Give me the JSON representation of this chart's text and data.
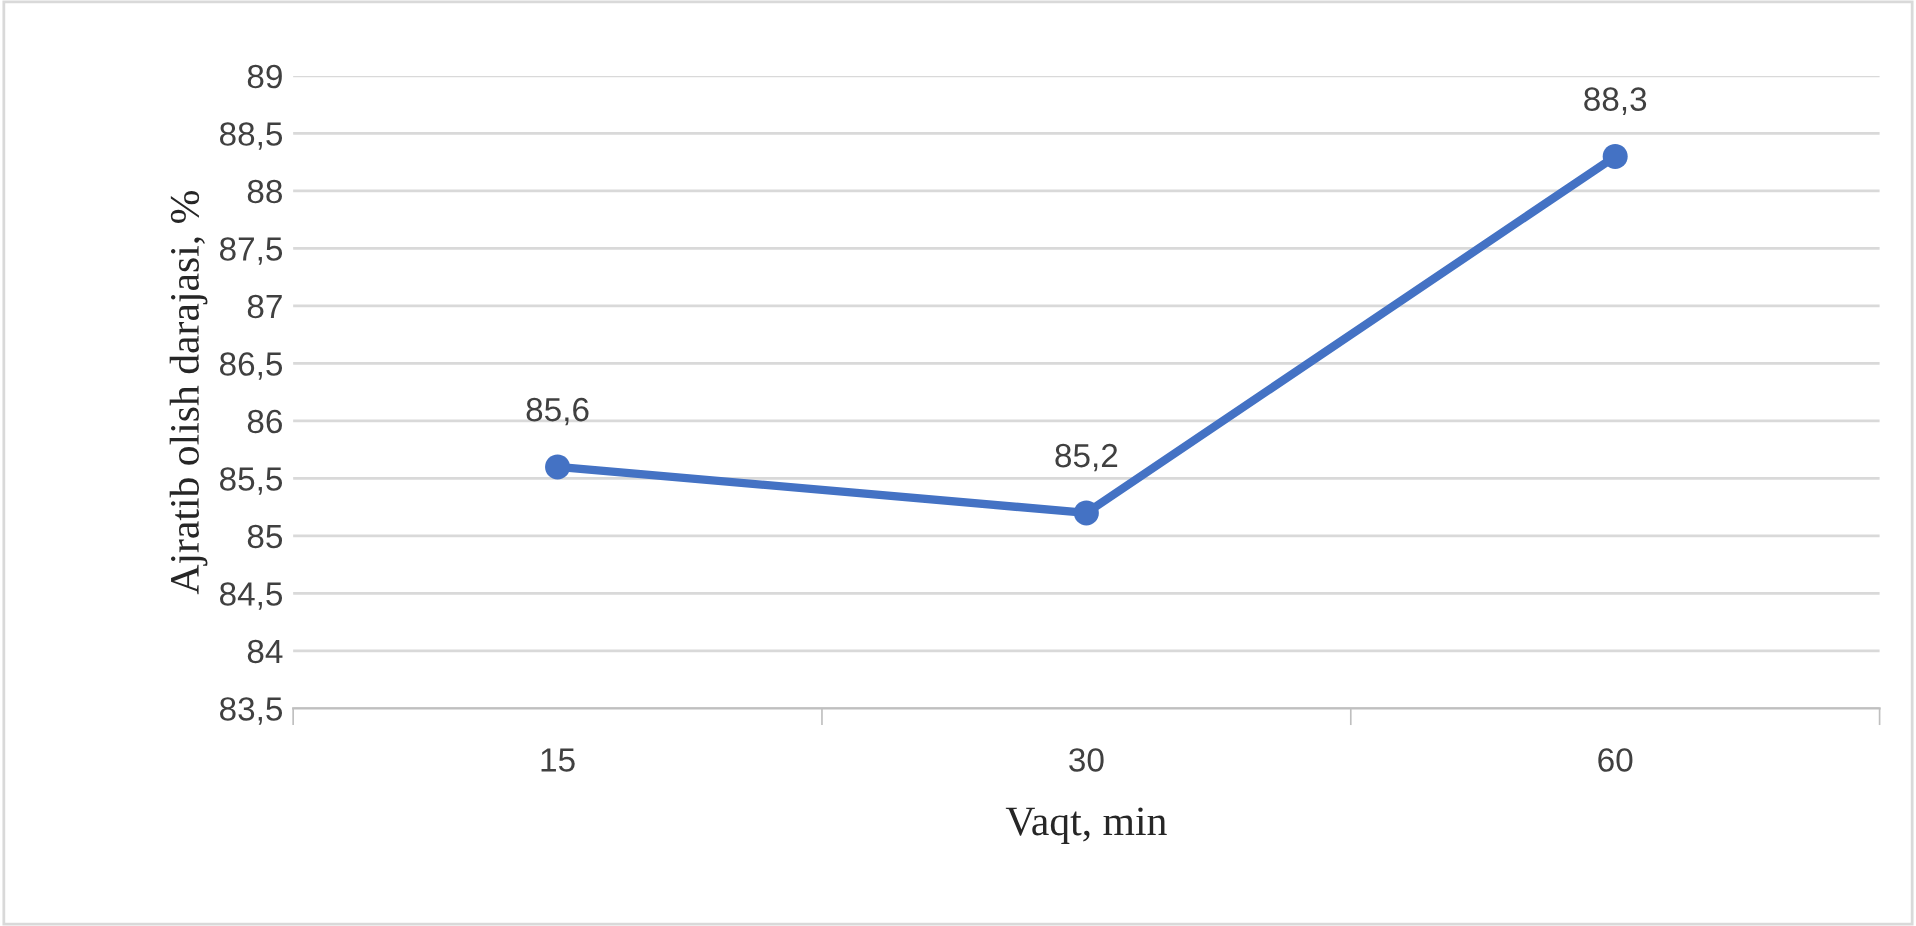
{
  "chart_data": {
    "type": "line",
    "xlabel": "Vaqt, min",
    "ylabel": "Ajratib olish darajasi, %",
    "categories": [
      "15",
      "30",
      "60"
    ],
    "series": [
      {
        "color": "#4472c4",
        "values": [
          85.6,
          85.2,
          88.3
        ],
        "value_labels": [
          "85,6",
          "85,2",
          "88,3"
        ]
      }
    ],
    "ylim": [
      83.5,
      89
    ],
    "yticks": [
      {
        "value": 83.5,
        "label": "83,5"
      },
      {
        "value": 84,
        "label": "84"
      },
      {
        "value": 84.5,
        "label": "84,5"
      },
      {
        "value": 85,
        "label": "85"
      },
      {
        "value": 85.5,
        "label": "85,5"
      },
      {
        "value": 86,
        "label": "86"
      },
      {
        "value": 86.5,
        "label": "86,5"
      },
      {
        "value": 87,
        "label": "87"
      },
      {
        "value": 87.5,
        "label": "87,5"
      },
      {
        "value": 88,
        "label": "88"
      },
      {
        "value": 88.5,
        "label": "88,5"
      },
      {
        "value": 89,
        "label": "89"
      }
    ],
    "grid": "y",
    "marker": "circle",
    "line_style": "solid",
    "legend": false
  }
}
